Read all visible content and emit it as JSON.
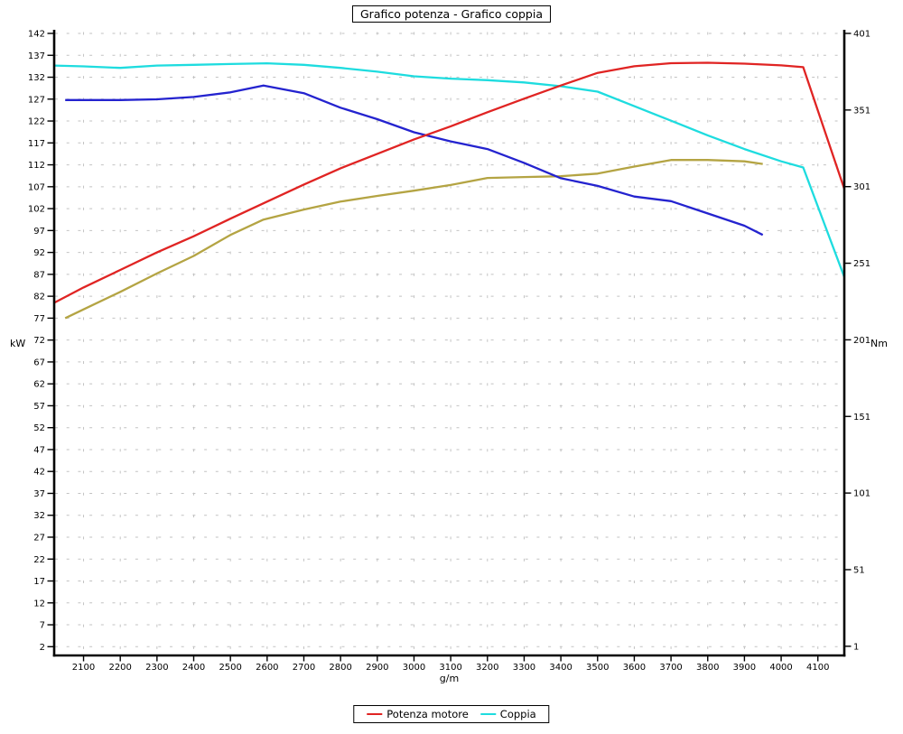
{
  "chart_data": {
    "type": "line",
    "title": "Grafico potenza - Grafico coppia",
    "xlabel": "g/m",
    "ylabel_left": "kW",
    "ylabel_right": "Nm",
    "xlim": [
      2020,
      4172
    ],
    "ylim_left": [
      0,
      142
    ],
    "ylim_right": [
      -5,
      401
    ],
    "grid": true,
    "legend_position": "bottom",
    "colors": {
      "grid": "#c2c2c2",
      "axis": "#000000",
      "red": "#e02423",
      "cyan": "#1edcdf",
      "blue": "#2423cf",
      "olive": "#b4a443"
    },
    "x_ticks": [
      2100,
      2200,
      2300,
      2400,
      2500,
      2600,
      2700,
      2800,
      2900,
      3000,
      3100,
      3200,
      3300,
      3400,
      3500,
      3600,
      3700,
      3800,
      3900,
      4000,
      4100
    ],
    "y_ticks_left": [
      2,
      7,
      12,
      17,
      22,
      27,
      32,
      37,
      42,
      47,
      52,
      57,
      62,
      67,
      72,
      77,
      82,
      87,
      92,
      97,
      102,
      107,
      112,
      117,
      122,
      127,
      132,
      137,
      142
    ],
    "y_ticks_right": [
      1,
      51,
      101,
      151,
      201,
      251,
      301,
      351,
      401
    ],
    "series": [
      {
        "id": "curve-olive",
        "legend": null,
        "axis": "left",
        "color": "#b4a443",
        "x": [
          2050,
          2100,
          2200,
          2300,
          2400,
          2500,
          2590,
          2700,
          2800,
          2900,
          3000,
          3100,
          3200,
          3300,
          3400,
          3500,
          3600,
          3700,
          3800,
          3900,
          3950
        ],
        "y": [
          77,
          79,
          83,
          87.2,
          91.2,
          96,
          99.5,
          101.8,
          103.6,
          104.9,
          106.1,
          107.4,
          109,
          109.2,
          109.4,
          110,
          111.6,
          113.1,
          113.1,
          112.8,
          112.2
        ]
      },
      {
        "id": "curve-blue",
        "legend": null,
        "axis": "right",
        "color": "#2423cf",
        "x": [
          2050,
          2100,
          2200,
          2300,
          2400,
          2500,
          2590,
          2700,
          2800,
          2900,
          3000,
          3100,
          3200,
          3300,
          3400,
          3500,
          3600,
          3700,
          3800,
          3900,
          3950
        ],
        "y": [
          357.5,
          357.5,
          357.5,
          358,
          359.5,
          362.5,
          367,
          362,
          352.5,
          345,
          336.5,
          330.5,
          325.5,
          316.5,
          306.5,
          301.5,
          294.5,
          291.5,
          283.5,
          275.5,
          269.5
        ]
      },
      {
        "id": "coppia",
        "legend": "Coppia",
        "axis": "right",
        "color": "#1edcdf",
        "x": [
          2020,
          2100,
          2200,
          2300,
          2400,
          2500,
          2600,
          2700,
          2800,
          2900,
          3000,
          3100,
          3200,
          3300,
          3400,
          3500,
          3600,
          3700,
          3800,
          3900,
          4000,
          4060,
          4172
        ],
        "y": [
          380,
          379.5,
          378.5,
          380,
          380.5,
          381,
          381.5,
          380.5,
          378.5,
          376,
          373,
          371.5,
          370.5,
          369,
          366.5,
          363,
          353.5,
          344,
          334.5,
          325.5,
          317.5,
          313.5,
          242
        ]
      },
      {
        "id": "potenza-motore",
        "legend": "Potenza motore",
        "axis": "left",
        "color": "#e02423",
        "x": [
          2020,
          2100,
          2200,
          2300,
          2400,
          2500,
          2600,
          2700,
          2800,
          2900,
          3000,
          3100,
          3200,
          3300,
          3400,
          3500,
          3600,
          3700,
          3800,
          3900,
          4000,
          4060,
          4172
        ],
        "y": [
          80.5,
          84,
          88,
          92,
          95.7,
          99.7,
          103.6,
          107.5,
          111.2,
          114.5,
          117.8,
          120.8,
          124,
          127.1,
          130.1,
          133,
          134.5,
          135.2,
          135.3,
          135.1,
          134.7,
          134.3,
          106.5
        ]
      }
    ]
  },
  "legend": {
    "entries": [
      {
        "id": "potenza-motore",
        "label": "Potenza motore",
        "color": "#e02423"
      },
      {
        "id": "coppia",
        "label": "Coppia",
        "color": "#1edcdf"
      }
    ]
  }
}
